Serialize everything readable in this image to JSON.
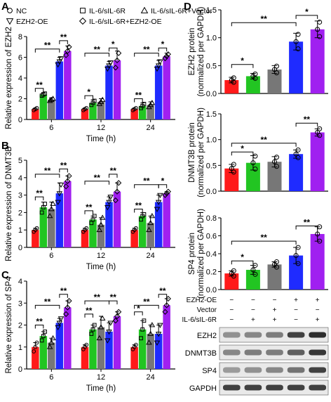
{
  "figure": {
    "panel_letters": [
      "A",
      "B",
      "C",
      "D"
    ],
    "legend": {
      "entries": [
        {
          "label": "NC",
          "color": "#ff1a1a",
          "marker": "circle"
        },
        {
          "label": "IL-6/sIL-6R",
          "color": "#22c522",
          "marker": "square"
        },
        {
          "label": "IL-6/sIL-6R+Vector",
          "color": "#777777",
          "marker": "triangle-up"
        },
        {
          "label": "EZH2-OE",
          "color": "#1f2bff",
          "marker": "triangle-down"
        },
        {
          "label": "IL-6/sIL-6R+EZH2-OE",
          "color": "#a020f0",
          "marker": "diamond"
        }
      ]
    },
    "blot": {
      "condition_rows": [
        {
          "label": "EZH2-OE",
          "signs": [
            "−",
            "−",
            "−",
            "+",
            "+"
          ]
        },
        {
          "label": "Vector",
          "signs": [
            "−",
            "−",
            "+",
            "−",
            "−"
          ]
        },
        {
          "label": "IL-6/sIL-6R",
          "signs": [
            "−",
            "+",
            "+",
            "−",
            "+"
          ]
        }
      ],
      "bands": [
        {
          "label": "EZH2",
          "intensity": [
            0.45,
            0.5,
            0.55,
            0.85,
            0.95
          ]
        },
        {
          "label": "DNMT3B",
          "intensity": [
            0.5,
            0.55,
            0.55,
            0.7,
            0.9
          ]
        },
        {
          "label": "SP4",
          "intensity": [
            0.4,
            0.45,
            0.5,
            0.6,
            0.85
          ]
        },
        {
          "label": "GAPDH",
          "intensity": [
            0.85,
            0.85,
            0.85,
            0.85,
            0.85
          ]
        }
      ]
    }
  },
  "chart_data": [
    {
      "panel": "A",
      "type": "bar",
      "ylabel": "Relative expression of EZH2",
      "xlabel": "Time (h)",
      "categories": [
        "6",
        "12",
        "24"
      ],
      "ylim": [
        0,
        8
      ],
      "yticks": [
        0,
        2,
        4,
        6,
        8
      ],
      "series": [
        {
          "name": "NC",
          "values": [
            1.0,
            1.0,
            1.0
          ],
          "errors": [
            0.1,
            0.1,
            0.1
          ],
          "points": [
            [
              0.9,
              1.0,
              1.1
            ],
            [
              0.9,
              1.0,
              1.1
            ],
            [
              0.9,
              1.0,
              1.1
            ]
          ]
        },
        {
          "name": "IL-6/sIL-6R",
          "values": [
            2.4,
            1.6,
            1.3
          ],
          "errors": [
            0.2,
            0.3,
            0.3
          ],
          "points": [
            [
              2.3,
              2.4,
              2.5
            ],
            [
              1.4,
              1.6,
              1.8
            ],
            [
              1.1,
              1.3,
              1.5
            ]
          ]
        },
        {
          "name": "IL-6/sIL-6R+Vector",
          "values": [
            1.9,
            1.7,
            1.4
          ],
          "errors": [
            0.2,
            0.3,
            0.3
          ],
          "points": [
            [
              1.8,
              1.9,
              2.0
            ],
            [
              1.5,
              1.7,
              1.9
            ],
            [
              1.2,
              1.4,
              1.6
            ]
          ]
        },
        {
          "name": "EZH2-OE",
          "values": [
            5.6,
            5.2,
            5.2
          ],
          "errors": [
            0.4,
            0.4,
            0.5
          ],
          "points": [
            [
              5.3,
              5.6,
              5.9
            ],
            [
              4.9,
              5.2,
              5.5
            ],
            [
              4.9,
              5.2,
              5.6
            ]
          ]
        },
        {
          "name": "IL-6/sIL-6R+EZH2-OE",
          "values": [
            6.6,
            5.7,
            6.1
          ],
          "errors": [
            0.5,
            0.9,
            0.3
          ],
          "points": [
            [
              6.2,
              6.6,
              7.0
            ],
            [
              5.0,
              5.7,
              6.4
            ],
            [
              5.9,
              6.1,
              6.3
            ]
          ]
        }
      ],
      "significance": [
        {
          "cat": 0,
          "from": 0,
          "to": 1,
          "label": "**",
          "level": 3.0
        },
        {
          "cat": 0,
          "from": 0,
          "to": 3,
          "label": "**",
          "level": 6.8
        },
        {
          "cat": 0,
          "from": 3,
          "to": 4,
          "label": "**",
          "level": 7.6
        },
        {
          "cat": 1,
          "from": 0,
          "to": 1,
          "label": "*",
          "level": 2.3
        },
        {
          "cat": 1,
          "from": 0,
          "to": 3,
          "label": "**",
          "level": 6.4
        },
        {
          "cat": 1,
          "from": 3,
          "to": 4,
          "label": "*",
          "level": 6.9
        },
        {
          "cat": 2,
          "from": 0,
          "to": 1,
          "label": "**",
          "level": 2.0
        },
        {
          "cat": 2,
          "from": 0,
          "to": 3,
          "label": "**",
          "level": 6.4
        },
        {
          "cat": 2,
          "from": 3,
          "to": 4,
          "label": "*",
          "level": 6.9
        }
      ]
    },
    {
      "panel": "B",
      "type": "bar",
      "ylabel": "Relative expression of DNMT3B",
      "xlabel": "Time (h)",
      "categories": [
        "6",
        "12",
        "24"
      ],
      "ylim": [
        0,
        5
      ],
      "yticks": [
        0,
        1,
        2,
        3,
        4,
        5
      ],
      "series": [
        {
          "name": "NC",
          "values": [
            1.0,
            1.0,
            1.0
          ],
          "errors": [
            0.1,
            0.1,
            0.1
          ],
          "points": [
            [
              0.9,
              1.0,
              1.1
            ],
            [
              0.9,
              1.0,
              1.1
            ],
            [
              0.9,
              1.0,
              1.1
            ]
          ]
        },
        {
          "name": "IL-6/sIL-6R",
          "values": [
            2.3,
            1.6,
            1.8
          ],
          "errors": [
            0.3,
            0.2,
            0.2
          ],
          "points": [
            [
              2.0,
              2.3,
              2.5
            ],
            [
              1.4,
              1.6,
              1.8
            ],
            [
              1.6,
              1.8,
              1.9
            ]
          ]
        },
        {
          "name": "IL-6/sIL-6R+Vector",
          "values": [
            2.2,
            1.3,
            1.4
          ],
          "errors": [
            0.4,
            0.4,
            0.4
          ],
          "points": [
            [
              1.8,
              2.2,
              2.5
            ],
            [
              1.0,
              1.3,
              1.7
            ],
            [
              1.0,
              1.4,
              1.8
            ]
          ]
        },
        {
          "name": "EZH2-OE",
          "values": [
            3.1,
            2.6,
            2.6
          ],
          "errors": [
            0.6,
            0.3,
            0.4
          ],
          "points": [
            [
              2.6,
              3.1,
              3.6
            ],
            [
              2.3,
              2.6,
              2.9
            ],
            [
              2.2,
              2.6,
              3.0
            ]
          ]
        },
        {
          "name": "IL-6/sIL-6R+EZH2-OE",
          "values": [
            3.8,
            3.2,
            3.1
          ],
          "errors": [
            0.3,
            0.5,
            0.1
          ],
          "points": [
            [
              3.5,
              3.8,
              4.1
            ],
            [
              2.7,
              3.2,
              3.7
            ],
            [
              3.0,
              3.1,
              3.2
            ]
          ]
        }
      ],
      "significance": [
        {
          "cat": 0,
          "from": 0,
          "to": 1,
          "label": "**",
          "level": 2.9
        },
        {
          "cat": 0,
          "from": 0,
          "to": 3,
          "label": "**",
          "level": 4.2
        },
        {
          "cat": 0,
          "from": 3,
          "to": 4,
          "label": "**",
          "level": 4.5
        },
        {
          "cat": 1,
          "from": 0,
          "to": 1,
          "label": "**",
          "level": 2.1
        },
        {
          "cat": 1,
          "from": 0,
          "to": 3,
          "label": "**",
          "level": 3.8
        },
        {
          "cat": 1,
          "from": 3,
          "to": 4,
          "label": "**",
          "level": 4.2
        },
        {
          "cat": 2,
          "from": 0,
          "to": 1,
          "label": "**",
          "level": 2.2
        },
        {
          "cat": 2,
          "from": 0,
          "to": 3,
          "label": "**",
          "level": 3.6
        },
        {
          "cat": 2,
          "from": 3,
          "to": 4,
          "label": "*",
          "level": 3.6
        }
      ]
    },
    {
      "panel": "C",
      "type": "bar",
      "ylabel": "Relative expression of SP4",
      "xlabel": "Time (h)",
      "categories": [
        "6",
        "12",
        "24"
      ],
      "ylim": [
        0,
        4
      ],
      "yticks": [
        0,
        1,
        2,
        3,
        4
      ],
      "series": [
        {
          "name": "NC",
          "values": [
            1.0,
            1.0,
            1.0
          ],
          "errors": [
            0.2,
            0.1,
            0.1
          ],
          "points": [
            [
              0.8,
              1.0,
              1.2
            ],
            [
              0.9,
              1.0,
              1.1
            ],
            [
              0.9,
              1.0,
              1.1
            ]
          ]
        },
        {
          "name": "IL-6/sIL-6R",
          "values": [
            1.5,
            1.8,
            1.8
          ],
          "errors": [
            0.2,
            0.2,
            0.4
          ],
          "points": [
            [
              1.3,
              1.5,
              1.7
            ],
            [
              1.6,
              1.8,
              2.0
            ],
            [
              1.4,
              1.8,
              2.2
            ]
          ]
        },
        {
          "name": "IL-6/sIL-6R+Vector",
          "values": [
            1.2,
            1.9,
            1.6
          ],
          "errors": [
            0.2,
            0.5,
            0.4
          ],
          "points": [
            [
              1.0,
              1.2,
              1.4
            ],
            [
              1.4,
              1.9,
              2.3
            ],
            [
              1.2,
              1.6,
              2.0
            ]
          ]
        },
        {
          "name": "EZH2-OE",
          "values": [
            2.1,
            1.7,
            1.6
          ],
          "errors": [
            0.2,
            0.4,
            0.4
          ],
          "points": [
            [
              1.9,
              2.1,
              2.3
            ],
            [
              1.3,
              1.7,
              2.1
            ],
            [
              1.2,
              1.6,
              2.0
            ]
          ]
        },
        {
          "name": "IL-6/sIL-6R+EZH2-OE",
          "values": [
            2.8,
            2.4,
            2.9
          ],
          "errors": [
            0.3,
            0.2,
            0.3
          ],
          "points": [
            [
              2.5,
              2.8,
              3.1
            ],
            [
              2.2,
              2.4,
              2.6
            ],
            [
              2.6,
              2.9,
              3.2
            ]
          ]
        }
      ],
      "significance": [
        {
          "cat": 0,
          "from": 0,
          "to": 1,
          "label": "**",
          "level": 2.0
        },
        {
          "cat": 0,
          "from": 0,
          "to": 3,
          "label": "**",
          "level": 2.9
        },
        {
          "cat": 0,
          "from": 3,
          "to": 4,
          "label": "**",
          "level": 3.4
        },
        {
          "cat": 1,
          "from": 0,
          "to": 1,
          "label": "**",
          "level": 2.5
        },
        {
          "cat": 1,
          "from": 0,
          "to": 3,
          "label": "**",
          "level": 3.1
        },
        {
          "cat": 1,
          "from": 3,
          "to": 4,
          "label": "**",
          "level": 3.1
        },
        {
          "cat": 2,
          "from": 0,
          "to": 1,
          "label": "*",
          "level": 2.6
        },
        {
          "cat": 2,
          "from": 0,
          "to": 3,
          "label": "**",
          "level": 2.9
        },
        {
          "cat": 2,
          "from": 3,
          "to": 4,
          "label": "**",
          "level": 3.4
        }
      ]
    },
    {
      "panel": "D-EZH2",
      "type": "bar",
      "ylabel": "EZH2 protein\n(normalized per GAPDH)",
      "categories": [
        "NC",
        "IL-6/sIL-6R",
        "IL-6/sIL-6R+Vector",
        "EZH2-OE",
        "IL-6/sIL-6R+EZH2-OE"
      ],
      "ylim": [
        0,
        1.5
      ],
      "yticks": [
        0,
        0.5,
        1.0,
        1.5
      ],
      "yticklabels": [
        "0.0",
        "0.5",
        "1.0",
        "1.5"
      ],
      "values": [
        0.24,
        0.31,
        0.43,
        0.93,
        1.15
      ],
      "errors": [
        0.05,
        0.05,
        0.07,
        0.15,
        0.15
      ],
      "points": [
        [
          0.2,
          0.24,
          0.28
        ],
        [
          0.27,
          0.31,
          0.35
        ],
        [
          0.37,
          0.43,
          0.49
        ],
        [
          0.8,
          0.93,
          1.06
        ],
        [
          1.02,
          1.15,
          1.28
        ]
      ],
      "significance": [
        {
          "from": 0,
          "to": 1,
          "label": "*",
          "level": 0.52
        },
        {
          "from": 0,
          "to": 3,
          "label": "**",
          "level": 1.27
        },
        {
          "from": 3,
          "to": 4,
          "label": "*",
          "level": 1.4
        }
      ]
    },
    {
      "panel": "D-DNMT3B",
      "type": "bar",
      "ylabel": "DNMT3B protein\n(normalized per GAPDH)",
      "categories": [
        "NC",
        "IL-6/sIL-6R",
        "IL-6/sIL-6R+Vector",
        "EZH2-OE",
        "IL-6/sIL-6R+EZH2-OE"
      ],
      "ylim": [
        0,
        1.5
      ],
      "yticks": [
        0,
        0.5,
        1.0,
        1.5
      ],
      "yticklabels": [
        "0.0",
        "0.5",
        "1.0",
        "1.5"
      ],
      "values": [
        0.44,
        0.55,
        0.57,
        0.72,
        1.14
      ],
      "errors": [
        0.08,
        0.14,
        0.1,
        0.08,
        0.07
      ],
      "points": [
        [
          0.37,
          0.44,
          0.52
        ],
        [
          0.43,
          0.55,
          0.68
        ],
        [
          0.48,
          0.57,
          0.66
        ],
        [
          0.65,
          0.72,
          0.8
        ],
        [
          1.08,
          1.14,
          1.21
        ]
      ],
      "significance": [
        {
          "from": 0,
          "to": 1,
          "label": "*",
          "level": 0.76
        },
        {
          "from": 0,
          "to": 3,
          "label": "**",
          "level": 0.93
        },
        {
          "from": 3,
          "to": 4,
          "label": "**",
          "level": 1.32
        }
      ]
    },
    {
      "panel": "D-SP4",
      "type": "bar",
      "ylabel": "SP4 protein\n(normalized per GAPDH)",
      "categories": [
        "NC",
        "IL-6/sIL-6R",
        "IL-6/sIL-6R+Vector",
        "EZH2-OE",
        "IL-6/sIL-6R+EZH2-OE"
      ],
      "ylim": [
        0,
        0.8
      ],
      "yticks": [
        0,
        0.2,
        0.4,
        0.6,
        0.8
      ],
      "yticklabels": [
        "0.0",
        "0.2",
        "0.4",
        "0.6",
        "0.8"
      ],
      "values": [
        0.18,
        0.22,
        0.28,
        0.38,
        0.62
      ],
      "errors": [
        0.03,
        0.05,
        0.03,
        0.09,
        0.08
      ],
      "points": [
        [
          0.15,
          0.18,
          0.21
        ],
        [
          0.17,
          0.22,
          0.27
        ],
        [
          0.25,
          0.28,
          0.31
        ],
        [
          0.29,
          0.38,
          0.47
        ],
        [
          0.54,
          0.62,
          0.7
        ]
      ],
      "significance": [
        {
          "from": 0,
          "to": 1,
          "label": "*",
          "level": 0.32
        },
        {
          "from": 0,
          "to": 3,
          "label": "**",
          "level": 0.54
        },
        {
          "from": 3,
          "to": 4,
          "label": "**",
          "level": 0.71
        }
      ]
    }
  ]
}
